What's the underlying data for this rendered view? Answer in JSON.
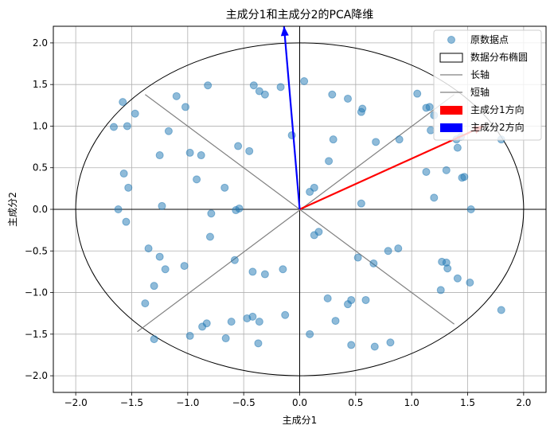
{
  "chart_data": {
    "type": "scatter",
    "title": "主成分1和主成分2的PCA降维",
    "xlabel": "主成分1",
    "ylabel": "主成分2",
    "xlim": [
      -2.2,
      2.2
    ],
    "ylim": [
      -2.2,
      2.2
    ],
    "xticks": [
      -2.0,
      -1.5,
      -1.0,
      -0.5,
      0.0,
      0.5,
      1.0,
      1.5,
      2.0
    ],
    "yticks": [
      -2.0,
      -1.5,
      -1.0,
      -0.5,
      0.0,
      0.5,
      1.0,
      1.5,
      2.0
    ],
    "xtick_labels": [
      "−2.0",
      "−1.5",
      "−1.0",
      "−0.5",
      "0.0",
      "0.5",
      "1.0",
      "1.5",
      "2.0"
    ],
    "ytick_labels": [
      "−2.0",
      "−1.5",
      "−1.0",
      "−0.5",
      "0.0",
      "0.5",
      "1.0",
      "1.5",
      "2.0"
    ],
    "grid": true,
    "legend_position": "top-right",
    "legend": [
      {
        "label": "原数据点",
        "kind": "marker",
        "color": "#1f77b4"
      },
      {
        "label": "数据分布椭圆",
        "kind": "patch-outline",
        "color": "#000000"
      },
      {
        "label": "长轴",
        "kind": "line",
        "color": "#808080"
      },
      {
        "label": "短轴",
        "kind": "line",
        "color": "#808080"
      },
      {
        "label": "主成分1方向",
        "kind": "patch",
        "color": "#ff0000"
      },
      {
        "label": "主成分2方向",
        "kind": "patch",
        "color": "#0000ff"
      }
    ],
    "points": [
      [
        -1.58,
        1.29
      ],
      [
        -1.47,
        1.15
      ],
      [
        -1.66,
        0.99
      ],
      [
        -1.54,
        1.0
      ],
      [
        -1.1,
        1.36
      ],
      [
        -1.02,
        1.23
      ],
      [
        -0.82,
        1.49
      ],
      [
        -1.17,
        0.94
      ],
      [
        -1.25,
        0.65
      ],
      [
        -0.98,
        0.68
      ],
      [
        -0.88,
        0.65
      ],
      [
        -0.55,
        0.76
      ],
      [
        -0.45,
        0.7
      ],
      [
        -1.57,
        0.43
      ],
      [
        -1.53,
        0.26
      ],
      [
        -0.92,
        0.36
      ],
      [
        -0.67,
        0.26
      ],
      [
        -1.23,
        0.04
      ],
      [
        -0.57,
        -0.01
      ],
      [
        -0.54,
        0.01
      ],
      [
        -0.79,
        -0.05
      ],
      [
        -1.62,
        0.0
      ],
      [
        -1.55,
        -0.15
      ],
      [
        -0.8,
        -0.33
      ],
      [
        -1.35,
        -0.47
      ],
      [
        -1.25,
        -0.57
      ],
      [
        -1.2,
        -0.72
      ],
      [
        -1.03,
        -0.68
      ],
      [
        -1.3,
        -0.92
      ],
      [
        -0.58,
        -0.61
      ],
      [
        -0.42,
        -0.75
      ],
      [
        -0.31,
        -0.78
      ],
      [
        -0.15,
        -0.72
      ],
      [
        -1.38,
        -1.13
      ],
      [
        -1.3,
        -1.56
      ],
      [
        -0.98,
        -1.52
      ],
      [
        -0.87,
        -1.41
      ],
      [
        -0.83,
        -1.37
      ],
      [
        -0.61,
        -1.35
      ],
      [
        -0.47,
        -1.31
      ],
      [
        -0.42,
        -1.29
      ],
      [
        -0.36,
        -1.35
      ],
      [
        -0.66,
        -1.55
      ],
      [
        -0.37,
        -1.61
      ],
      [
        -0.13,
        -1.27
      ],
      [
        -0.41,
        1.49
      ],
      [
        -0.36,
        1.42
      ],
      [
        -0.31,
        1.38
      ],
      [
        -0.17,
        1.47
      ],
      [
        0.04,
        1.54
      ],
      [
        -0.07,
        0.89
      ],
      [
        0.09,
        0.21
      ],
      [
        0.13,
        0.26
      ],
      [
        0.13,
        -0.31
      ],
      [
        0.17,
        -0.27
      ],
      [
        0.29,
        1.38
      ],
      [
        0.43,
        1.33
      ],
      [
        0.55,
        1.17
      ],
      [
        0.56,
        1.21
      ],
      [
        0.3,
        0.84
      ],
      [
        0.26,
        0.58
      ],
      [
        0.55,
        0.07
      ],
      [
        0.52,
        -0.58
      ],
      [
        0.66,
        -0.65
      ],
      [
        0.79,
        -0.5
      ],
      [
        0.88,
        -0.47
      ],
      [
        0.25,
        -1.07
      ],
      [
        0.32,
        -1.34
      ],
      [
        0.43,
        -1.14
      ],
      [
        0.46,
        -1.09
      ],
      [
        0.59,
        -1.09
      ],
      [
        0.09,
        -1.5
      ],
      [
        0.46,
        -1.63
      ],
      [
        0.67,
        -1.65
      ],
      [
        0.81,
        -1.6
      ],
      [
        0.68,
        0.81
      ],
      [
        0.89,
        0.84
      ],
      [
        1.05,
        1.39
      ],
      [
        1.13,
        1.22
      ],
      [
        1.16,
        1.23
      ],
      [
        1.2,
        1.13
      ],
      [
        1.17,
        0.95
      ],
      [
        1.13,
        0.45
      ],
      [
        1.2,
        0.14
      ],
      [
        1.31,
        0.47
      ],
      [
        1.4,
        0.84
      ],
      [
        1.41,
        0.74
      ],
      [
        1.44,
        0.87
      ],
      [
        1.45,
        0.38
      ],
      [
        1.47,
        0.39
      ],
      [
        1.53,
        0.0
      ],
      [
        1.27,
        -0.63
      ],
      [
        1.31,
        -0.64
      ],
      [
        1.32,
        -0.71
      ],
      [
        1.26,
        -0.97
      ],
      [
        1.41,
        -0.83
      ],
      [
        1.52,
        -0.88
      ],
      [
        1.8,
        0.84
      ],
      [
        1.8,
        -1.21
      ]
    ],
    "ellipse": {
      "center": [
        0.0,
        0.0
      ],
      "semi_x": 2.0,
      "semi_y": 2.0
    },
    "long_axis": [
      [
        -1.45,
        -1.47
      ],
      [
        1.38,
        1.38
      ]
    ],
    "short_axis": [
      [
        -1.38,
        1.38
      ],
      [
        1.38,
        -1.38
      ]
    ],
    "pc1_arrow": {
      "from": [
        0.0,
        0.0
      ],
      "to": [
        1.64,
        1.0
      ]
    },
    "pc2_arrow": {
      "from": [
        0.0,
        0.0
      ],
      "to": [
        -0.14,
        2.2
      ]
    }
  }
}
